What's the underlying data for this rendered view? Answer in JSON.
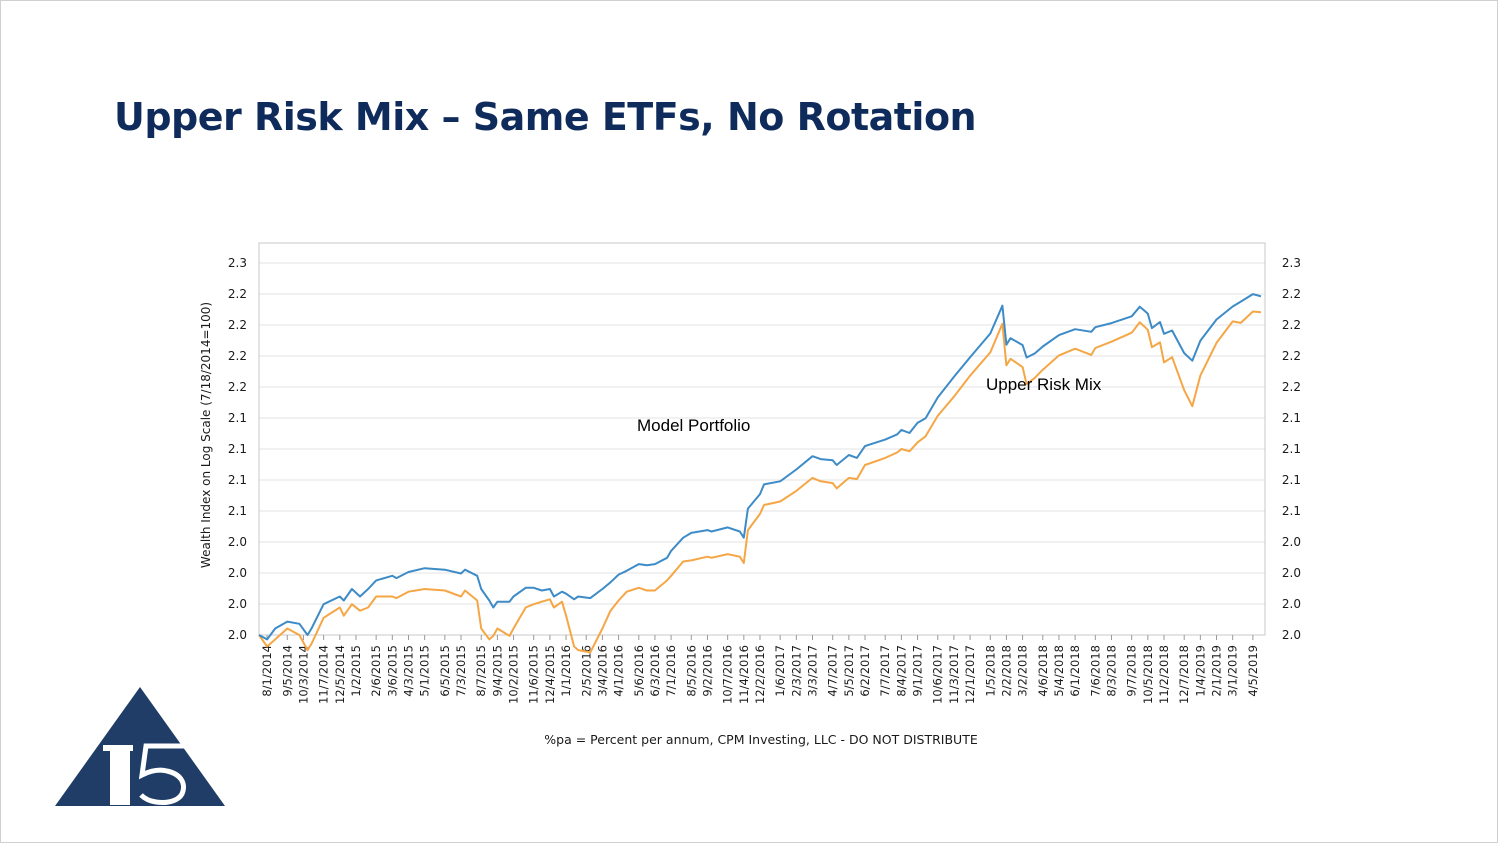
{
  "slide": {
    "title": "Upper Risk Mix – Same ETFs, No Rotation"
  },
  "logo": {
    "text": "15",
    "color": "#1f3d66"
  },
  "chart_data": {
    "type": "line",
    "ylabel": "Wealth Index on Log Scale (7/18/2014=100)",
    "xlabel": "",
    "footnote": "%pa = Percent per annum, CPM Investing, LLC - DO NOT DISTRIBUTE",
    "y_scale": "log",
    "ylim": [
      100,
      245
    ],
    "y_ticks": [
      "2.0",
      "2.0",
      "2.0",
      "2.0",
      "2.1",
      "2.1",
      "2.1",
      "2.1",
      "2.2",
      "2.2",
      "2.2",
      "2.2",
      "2.3"
    ],
    "grid": true,
    "legend": "none",
    "x_ticks": [
      "8/1/2014",
      "9/5/2014",
      "10/3/2014",
      "11/7/2014",
      "12/5/2014",
      "1/2/2015",
      "2/6/2015",
      "3/6/2015",
      "4/3/2015",
      "5/1/2015",
      "6/5/2015",
      "7/3/2015",
      "8/7/2015",
      "9/4/2015",
      "10/2/2015",
      "11/6/2015",
      "12/4/2015",
      "1/1/2016",
      "2/5/2016",
      "3/4/2016",
      "4/1/2016",
      "5/6/2016",
      "6/3/2016",
      "7/1/2016",
      "8/5/2016",
      "9/2/2016",
      "10/7/2016",
      "11/4/2016",
      "12/2/2016",
      "1/6/2017",
      "2/3/2017",
      "3/3/2017",
      "4/7/2017",
      "5/5/2017",
      "6/2/2017",
      "7/7/2017",
      "8/4/2017",
      "9/1/2017",
      "10/6/2017",
      "11/3/2017",
      "12/1/2017",
      "1/5/2018",
      "2/2/2018",
      "3/2/2018",
      "4/6/2018",
      "5/4/2018",
      "6/1/2018",
      "7/6/2018",
      "8/3/2018",
      "9/7/2018",
      "10/5/2018",
      "11/2/2018",
      "12/7/2018",
      "1/4/2019",
      "2/1/2019",
      "3/1/2019",
      "4/5/2019"
    ],
    "series": [
      {
        "name": "Model Portfolio",
        "color": "#3d8bc7",
        "x": [
          "7/18/2014",
          "8/1/2014",
          "8/15/2014",
          "9/5/2014",
          "9/26/2014",
          "10/10/2014",
          "10/17/2014",
          "11/7/2014",
          "12/5/2014",
          "12/12/2014",
          "12/26/2014",
          "1/9/2015",
          "1/23/2015",
          "2/6/2015",
          "3/6/2015",
          "3/13/2015",
          "4/3/2015",
          "5/1/2015",
          "6/5/2015",
          "7/3/2015",
          "7/10/2015",
          "7/31/2015",
          "8/7/2015",
          "8/21/2015",
          "8/28/2015",
          "9/4/2015",
          "9/25/2015",
          "10/2/2015",
          "10/23/2015",
          "11/6/2015",
          "11/20/2015",
          "12/4/2015",
          "12/11/2015",
          "12/25/2015",
          "1/1/2016",
          "1/15/2016",
          "1/22/2016",
          "2/12/2016",
          "3/4/2016",
          "3/18/2016",
          "4/1/2016",
          "4/15/2016",
          "5/6/2016",
          "5/20/2016",
          "6/3/2016",
          "6/24/2016",
          "7/1/2016",
          "7/22/2016",
          "8/5/2016",
          "9/2/2016",
          "9/9/2016",
          "10/7/2016",
          "10/28/2016",
          "11/4/2016",
          "11/11/2016",
          "12/2/2016",
          "12/9/2016",
          "1/6/2017",
          "2/3/2017",
          "3/3/2017",
          "3/17/2017",
          "4/7/2017",
          "4/14/2017",
          "5/5/2017",
          "5/19/2017",
          "6/2/2017",
          "7/7/2017",
          "7/28/2017",
          "8/4/2017",
          "8/18/2017",
          "9/1/2017",
          "9/15/2017",
          "10/6/2017",
          "11/3/2017",
          "12/1/2017",
          "1/5/2018",
          "1/26/2018",
          "2/2/2018",
          "2/9/2018",
          "3/2/2018",
          "3/9/2018",
          "3/23/2018",
          "4/6/2018",
          "5/4/2018",
          "6/1/2018",
          "6/29/2018",
          "7/6/2018",
          "8/3/2018",
          "9/7/2018",
          "9/21/2018",
          "10/5/2018",
          "10/12/2018",
          "10/26/2018",
          "11/2/2018",
          "11/16/2018",
          "12/7/2018",
          "12/21/2018",
          "1/4/2019",
          "2/1/2019",
          "3/1/2019",
          "3/15/2019",
          "4/5/2019",
          "4/19/2019"
        ],
        "values": [
          100.0,
          99.0,
          101.5,
          103.1,
          102.6,
          100.0,
          101.5,
          107.3,
          109.2,
          108.2,
          111.1,
          109.2,
          111.1,
          113.3,
          114.5,
          113.9,
          115.5,
          116.5,
          116.1,
          115.1,
          116.1,
          114.5,
          111.1,
          108.2,
          106.5,
          107.9,
          107.9,
          109.2,
          111.4,
          111.4,
          110.7,
          111.1,
          109.2,
          110.4,
          109.9,
          108.5,
          109.2,
          108.8,
          111.1,
          112.8,
          114.8,
          115.8,
          117.6,
          117.3,
          117.6,
          119.3,
          121.2,
          124.9,
          126.3,
          127.1,
          126.7,
          127.9,
          126.7,
          124.9,
          133.5,
          138.0,
          141.1,
          142.1,
          146.0,
          150.5,
          149.5,
          149.1,
          147.5,
          150.9,
          149.9,
          154.0,
          156.3,
          158.2,
          159.8,
          158.7,
          162.4,
          164.1,
          172.1,
          180.4,
          188.7,
          199.2,
          212.3,
          194.2,
          197.1,
          194.0,
          188.6,
          190.3,
          193.4,
          198.5,
          201.2,
          200.0,
          202.1,
          204.0,
          207.2,
          211.8,
          208.5,
          201.7,
          204.5,
          199.1,
          200.6,
          190.5,
          187.2,
          196.0,
          205.7,
          211.9,
          214.3,
          218.0,
          216.9
        ]
      },
      {
        "name": "Upper Risk Mix",
        "color": "#f5a645",
        "x": [
          "7/18/2014",
          "8/1/2014",
          "8/15/2014",
          "9/5/2014",
          "9/26/2014",
          "10/10/2014",
          "10/17/2014",
          "11/7/2014",
          "12/5/2014",
          "12/12/2014",
          "12/26/2014",
          "1/9/2015",
          "1/23/2015",
          "2/6/2015",
          "3/6/2015",
          "3/13/2015",
          "4/3/2015",
          "5/1/2015",
          "6/5/2015",
          "7/3/2015",
          "7/10/2015",
          "7/31/2015",
          "8/7/2015",
          "8/21/2015",
          "8/28/2015",
          "9/4/2015",
          "9/25/2015",
          "10/2/2015",
          "10/23/2015",
          "11/6/2015",
          "11/20/2015",
          "12/4/2015",
          "12/11/2015",
          "12/25/2015",
          "1/1/2016",
          "1/15/2016",
          "1/22/2016",
          "2/12/2016",
          "3/4/2016",
          "3/18/2016",
          "4/1/2016",
          "4/15/2016",
          "5/6/2016",
          "5/20/2016",
          "6/3/2016",
          "6/24/2016",
          "7/1/2016",
          "7/22/2016",
          "8/5/2016",
          "9/2/2016",
          "9/9/2016",
          "10/7/2016",
          "10/28/2016",
          "11/4/2016",
          "11/11/2016",
          "12/2/2016",
          "12/9/2016",
          "1/6/2017",
          "2/3/2017",
          "3/3/2017",
          "3/17/2017",
          "4/7/2017",
          "4/14/2017",
          "5/5/2017",
          "5/19/2017",
          "6/2/2017",
          "7/7/2017",
          "7/28/2017",
          "8/4/2017",
          "8/18/2017",
          "9/1/2017",
          "9/15/2017",
          "10/6/2017",
          "11/3/2017",
          "12/1/2017",
          "1/5/2018",
          "1/26/2018",
          "2/2/2018",
          "2/9/2018",
          "3/2/2018",
          "3/9/2018",
          "3/23/2018",
          "4/6/2018",
          "5/4/2018",
          "6/1/2018",
          "6/29/2018",
          "7/6/2018",
          "8/3/2018",
          "9/7/2018",
          "9/21/2018",
          "10/5/2018",
          "10/12/2018",
          "10/26/2018",
          "11/2/2018",
          "11/16/2018",
          "12/7/2018",
          "12/21/2018",
          "1/4/2019",
          "2/1/2019",
          "3/1/2019",
          "3/15/2019",
          "4/5/2019",
          "4/19/2019"
        ],
        "values": [
          100.0,
          97.4,
          99.0,
          101.5,
          100.0,
          96.6,
          98.0,
          104.0,
          106.5,
          104.5,
          107.3,
          105.7,
          106.5,
          109.2,
          109.2,
          108.8,
          110.4,
          111.1,
          110.7,
          109.2,
          110.7,
          108.2,
          101.5,
          99.0,
          99.8,
          101.5,
          99.8,
          101.5,
          106.5,
          107.3,
          107.9,
          108.5,
          106.5,
          107.9,
          104.5,
          97.4,
          96.6,
          96.1,
          101.5,
          105.7,
          108.2,
          110.4,
          111.4,
          110.7,
          110.7,
          113.3,
          114.5,
          118.3,
          118.6,
          119.6,
          119.3,
          120.3,
          119.6,
          117.9,
          127.1,
          131.9,
          134.6,
          135.7,
          139.0,
          143.2,
          142.1,
          141.5,
          139.8,
          143.2,
          142.8,
          147.5,
          149.9,
          151.8,
          153.0,
          152.2,
          155.3,
          157.5,
          165.0,
          172.4,
          180.9,
          190.8,
          203.7,
          185.2,
          188.0,
          184.5,
          177.4,
          180.0,
          183.4,
          189.5,
          192.4,
          189.7,
          192.7,
          195.5,
          199.6,
          204.4,
          200.9,
          193.1,
          195.2,
          186.5,
          188.7,
          175.0,
          168.7,
          181.0,
          195.0,
          204.8,
          204.1,
          209.5,
          209.1
        ]
      }
    ],
    "annotations": [
      {
        "text": "Model Portfolio"
      },
      {
        "text": "Upper Risk Mix"
      }
    ]
  }
}
